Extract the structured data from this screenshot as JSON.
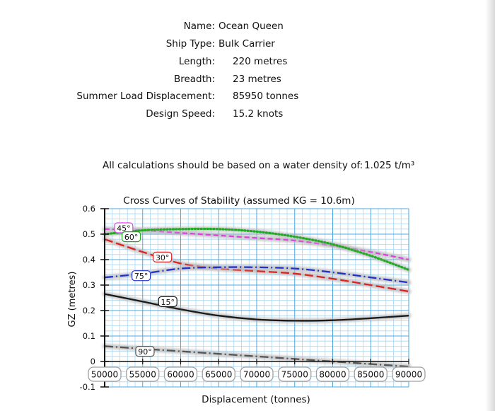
{
  "ship_info": [
    {
      "label": "Name:",
      "value": "Ocean Queen"
    },
    {
      "label": "Ship Type:",
      "value": "Bulk Carrier"
    },
    {
      "label": "Length:",
      "value": "220 metres"
    },
    {
      "label": "Breadth:",
      "value": "23 metres"
    },
    {
      "label": "Summer Load Displacement:",
      "value": "85950 tonnes"
    },
    {
      "label": "Design Speed:",
      "value": "15.2 knots"
    }
  ],
  "density": {
    "label": "All calculations should be based on a water density of:",
    "value": "1.025 t/m³"
  },
  "chart_data": {
    "type": "line",
    "title": "Cross Curves of Stability (assumed KG = 10.6m)",
    "xlabel": "Displacement (tonnes)",
    "ylabel": "GZ (metres)",
    "xlim": [
      50000,
      90000
    ],
    "ylim": [
      -0.1,
      0.6
    ],
    "x_ticks": [
      "50000",
      "55000",
      "60000",
      "65000",
      "70000",
      "75000",
      "80000",
      "85000",
      "90000"
    ],
    "y_ticks": [
      "-0.1",
      "0",
      "0.1",
      "0.2",
      "0.3",
      "0.4",
      "0.5",
      "0.6"
    ],
    "grid": true,
    "series": [
      {
        "name": "15°",
        "color": "#1a1a1a",
        "dash": "solid",
        "x": [
          50000,
          55000,
          60000,
          65000,
          70000,
          75000,
          80000,
          85000,
          90000
        ],
        "y": [
          0.265,
          0.235,
          0.205,
          0.18,
          0.165,
          0.16,
          0.162,
          0.17,
          0.18
        ]
      },
      {
        "name": "30°",
        "color": "#e02020",
        "dash": "long",
        "x": [
          50000,
          55000,
          60000,
          65000,
          70000,
          75000,
          80000,
          85000,
          90000
        ],
        "y": [
          0.48,
          0.43,
          0.385,
          0.365,
          0.355,
          0.345,
          0.325,
          0.3,
          0.275
        ]
      },
      {
        "name": "45°",
        "color": "#e040e0",
        "dash": "short",
        "x": [
          50000,
          55000,
          60000,
          65000,
          70000,
          75000,
          80000,
          85000,
          90000
        ],
        "y": [
          0.52,
          0.515,
          0.505,
          0.495,
          0.485,
          0.475,
          0.455,
          0.43,
          0.4
        ]
      },
      {
        "name": "60°",
        "color": "#22aa22",
        "dash": "dot",
        "x": [
          50000,
          55000,
          60000,
          65000,
          70000,
          75000,
          80000,
          85000,
          90000
        ],
        "y": [
          0.5,
          0.515,
          0.52,
          0.52,
          0.51,
          0.49,
          0.46,
          0.415,
          0.36
        ]
      },
      {
        "name": "75°",
        "color": "#2233cc",
        "dash": "dashdot",
        "x": [
          50000,
          55000,
          60000,
          65000,
          70000,
          75000,
          80000,
          85000,
          90000
        ],
        "y": [
          0.33,
          0.345,
          0.365,
          0.37,
          0.37,
          0.365,
          0.35,
          0.33,
          0.31
        ]
      },
      {
        "name": "90°",
        "color": "#555555",
        "dash": "dashdot",
        "x": [
          50000,
          55000,
          60000,
          65000,
          70000,
          75000,
          80000,
          85000,
          90000
        ],
        "y": [
          0.06,
          0.05,
          0.04,
          0.03,
          0.02,
          0.01,
          0.0,
          -0.01,
          -0.02
        ]
      }
    ]
  }
}
